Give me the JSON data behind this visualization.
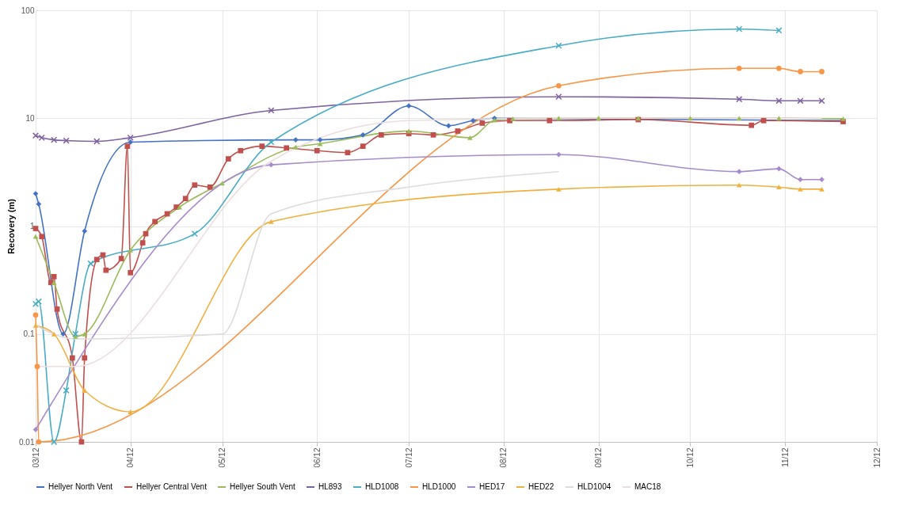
{
  "chart_data": {
    "type": "line",
    "ylabel": "Recovery (m)",
    "log": "y",
    "grid": true,
    "legend": "bottom",
    "line_style": "solid",
    "xlim": [
      "2012-03-01",
      "2012-12-01"
    ],
    "xticks": [
      {
        "value": "2012-03-01",
        "label": "03/12"
      },
      {
        "value": "2012-04-01",
        "label": "04/12"
      },
      {
        "value": "2012-05-01",
        "label": "05/12"
      },
      {
        "value": "2012-06-01",
        "label": "06/12"
      },
      {
        "value": "2012-07-01",
        "label": "07/12"
      },
      {
        "value": "2012-08-01",
        "label": "08/12"
      },
      {
        "value": "2012-09-01",
        "label": "09/12"
      },
      {
        "value": "2012-10-01",
        "label": "10/12"
      },
      {
        "value": "2012-11-01",
        "label": "11/12"
      },
      {
        "value": "2012-12-01",
        "label": "12/12"
      }
    ],
    "ylim": [
      0.01,
      100
    ],
    "yticks": [
      0.01,
      0.1,
      1,
      10,
      100
    ],
    "series": [
      {
        "name": "Hellyer North Vent",
        "color": "#4472c4",
        "marker": "diamond",
        "x": [
          "2012-03-01",
          "2012-03-02",
          "2012-03-10",
          "2012-03-17",
          "2012-04-01",
          "2012-05-25",
          "2012-06-02",
          "2012-06-16",
          "2012-07-01",
          "2012-07-14",
          "2012-07-22",
          "2012-07-29",
          "2012-08-19",
          "2012-09-01",
          "2012-10-01",
          "2012-10-30",
          "2012-11-20"
        ],
        "values": [
          2.0,
          1.6,
          0.1,
          0.9,
          6.0,
          6.3,
          6.3,
          7.0,
          13,
          8.5,
          9.5,
          10,
          null,
          null,
          null,
          null,
          9.5
        ]
      },
      {
        "name": "Hellyer Central Vent",
        "color": "#c0504d",
        "marker": "square",
        "x": [
          "2012-03-01",
          "2012-03-03",
          "2012-03-06",
          "2012-03-07",
          "2012-03-08",
          "2012-03-13",
          "2012-03-16",
          "2012-03-17",
          "2012-03-21",
          "2012-03-23",
          "2012-03-24",
          "2012-03-29",
          "2012-03-31",
          "2012-04-01",
          "2012-04-05",
          "2012-04-06",
          "2012-04-09",
          "2012-04-13",
          "2012-04-16",
          "2012-04-19",
          "2012-04-22",
          "2012-04-27",
          "2012-05-03",
          "2012-05-07",
          "2012-05-14",
          "2012-05-22",
          "2012-06-01",
          "2012-06-11",
          "2012-06-16",
          "2012-06-22",
          "2012-07-01",
          "2012-07-09",
          "2012-07-17",
          "2012-07-25",
          "2012-08-03",
          "2012-08-16",
          "2012-09-14",
          "2012-10-21",
          "2012-10-25",
          "2012-11-20"
        ],
        "values": [
          0.95,
          0.8,
          0.3,
          0.34,
          0.17,
          0.06,
          0.01,
          0.06,
          0.49,
          0.54,
          0.39,
          0.5,
          5.5,
          0.37,
          0.7,
          0.85,
          1.1,
          1.3,
          1.5,
          1.8,
          2.4,
          2.3,
          4.2,
          5,
          5.5,
          5.3,
          5,
          4.8,
          5.5,
          7,
          7.2,
          7,
          7.6,
          9,
          9.5,
          9.5,
          9.7,
          8.6,
          9.5,
          9.3
        ]
      },
      {
        "name": "Hellyer South Vent",
        "color": "#9bbb59",
        "marker": "triangle",
        "x": [
          "2012-03-01",
          "2012-03-07",
          "2012-03-14",
          "2012-03-17",
          "2012-04-01",
          "2012-04-17",
          "2012-05-01",
          "2012-05-25",
          "2012-06-02",
          "2012-07-01",
          "2012-07-21",
          "2012-07-29",
          "2012-08-04",
          "2012-08-19",
          "2012-09-01",
          "2012-09-14",
          "2012-10-01",
          "2012-10-17",
          "2012-10-30",
          "2012-11-20"
        ],
        "values": [
          0.8,
          0.3,
          0.095,
          0.1,
          0.6,
          1.5,
          2.5,
          5.4,
          5.8,
          7.6,
          6.6,
          9.6,
          9.9,
          10,
          10,
          10,
          10,
          10,
          10,
          9.9
        ]
      },
      {
        "name": "HL893",
        "color": "#7f63a1",
        "marker": "cross",
        "x": [
          "2012-03-01",
          "2012-03-03",
          "2012-03-07",
          "2012-03-11",
          "2012-03-21",
          "2012-04-01",
          "2012-05-17",
          "2012-08-19",
          "2012-10-17",
          "2012-10-30",
          "2012-11-06",
          "2012-11-13"
        ],
        "values": [
          6.9,
          6.6,
          6.3,
          6.2,
          6.1,
          6.6,
          11.8,
          15.8,
          15,
          14.5,
          14.5,
          14.5
        ]
      },
      {
        "name": "HLD1008",
        "color": "#4bacc6",
        "marker": "cross",
        "x": [
          "2012-03-01",
          "2012-03-02",
          "2012-03-07",
          "2012-03-11",
          "2012-03-14",
          "2012-03-19",
          "2012-04-22",
          "2012-05-17",
          "2012-08-19",
          "2012-10-17",
          "2012-10-30"
        ],
        "values": [
          0.19,
          0.2,
          0.01,
          0.03,
          0.1,
          0.45,
          0.85,
          6,
          47,
          67,
          65
        ]
      },
      {
        "name": "HLD1000",
        "color": "#f79646",
        "marker": "circle",
        "x": [
          "2012-03-01",
          "2012-03-01T12:00",
          "2012-03-02",
          "2012-08-19",
          "2012-10-17",
          "2012-10-30",
          "2012-11-06",
          "2012-11-13"
        ],
        "values": [
          0.15,
          0.05,
          0.01,
          20,
          29,
          29,
          27,
          27
        ]
      },
      {
        "name": "HED17",
        "color": "#a68bcc",
        "marker": "diamond",
        "x": [
          "2012-03-01",
          "2012-05-17",
          "2012-08-19",
          "2012-10-17",
          "2012-10-30",
          "2012-11-06",
          "2012-11-13"
        ],
        "values": [
          0.013,
          3.7,
          4.6,
          3.2,
          3.4,
          2.7,
          2.7
        ]
      },
      {
        "name": "HED22",
        "color": "#f0b040",
        "marker": "triangle",
        "x": [
          "2012-03-01",
          "2012-03-07",
          "2012-03-17",
          "2012-04-01",
          "2012-05-17",
          "2012-08-19",
          "2012-10-17",
          "2012-10-30",
          "2012-11-06",
          "2012-11-13"
        ],
        "values": [
          0.12,
          0.1,
          0.03,
          0.019,
          1.1,
          2.2,
          2.4,
          2.3,
          2.2,
          2.2
        ]
      },
      {
        "name": "HLD1004",
        "color": "#dcdcdc",
        "marker": "none",
        "x": [
          "2012-03-01",
          "2012-03-14",
          "2012-05-01",
          "2012-05-17",
          "2012-07-01",
          "2012-08-19"
        ],
        "values": [
          0.12,
          0.09,
          0.1,
          1.3,
          2.3,
          3.2
        ]
      },
      {
        "name": "MAC18",
        "color": "#ecdede",
        "marker": "none",
        "x": [
          "2012-03-01",
          "2012-03-14",
          "2012-05-17",
          "2012-07-01",
          "2012-08-19",
          "2012-11-13"
        ],
        "values": [
          0.05,
          0.05,
          4,
          9.5,
          10,
          10
        ]
      }
    ]
  }
}
